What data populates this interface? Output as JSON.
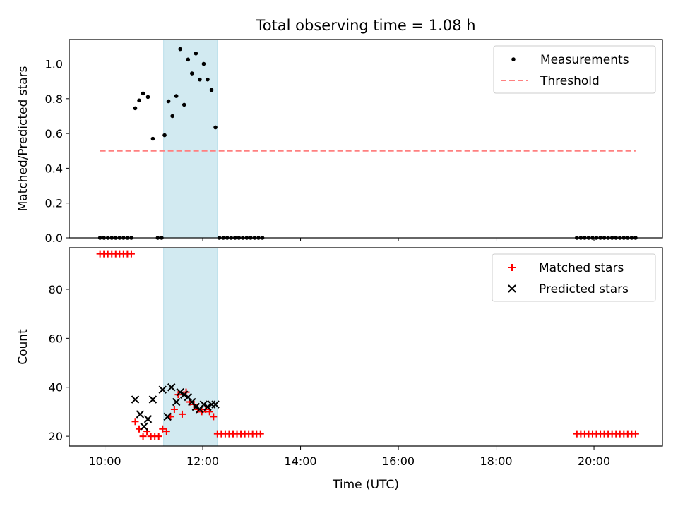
{
  "figure_title": "Total observing time = 1.08 h",
  "colors": {
    "threshold": "#ff8080",
    "highlight": "#add8e6",
    "matched": "#ff0000",
    "predicted": "#000000",
    "measurement": "#000000"
  },
  "chart_data": [
    {
      "type": "scatter",
      "title": "Total observing time = 1.08 h",
      "xlabel": "",
      "ylabel": "Matched/Predicted stars",
      "x_range_hours": [
        9.27,
        21.4
      ],
      "ylim": [
        0,
        1.14
      ],
      "yticks": [
        0.0,
        0.2,
        0.4,
        0.6,
        0.8,
        1.0
      ],
      "ytick_labels": [
        "0.0",
        "0.2",
        "0.4",
        "0.6",
        "0.8",
        "1.0"
      ],
      "legend_position": "top-right",
      "highlight_span_hours": [
        11.2,
        12.3
      ],
      "series": [
        {
          "name": "Measurements",
          "marker": "dot",
          "x_hours": [
            9.9,
            9.98,
            10.06,
            10.14,
            10.22,
            10.3,
            10.38,
            10.46,
            10.54,
            10.62,
            10.7,
            10.78,
            10.88,
            10.98,
            11.08,
            11.16,
            11.22,
            11.3,
            11.38,
            11.46,
            11.54,
            11.62,
            11.7,
            11.78,
            11.86,
            11.94,
            12.02,
            12.1,
            12.18,
            12.26,
            12.34,
            12.42,
            12.5,
            12.58,
            12.66,
            12.74,
            12.82,
            12.9,
            12.98,
            13.06,
            13.14,
            13.22,
            19.65,
            19.73,
            19.81,
            19.89,
            19.97,
            20.05,
            20.13,
            20.21,
            20.29,
            20.37,
            20.45,
            20.53,
            20.61,
            20.69,
            20.77,
            20.85
          ],
          "y": [
            0,
            0,
            0,
            0,
            0,
            0,
            0,
            0,
            0,
            0.745,
            0.79,
            0.83,
            0.81,
            0.57,
            0,
            0,
            0.59,
            0.785,
            0.7,
            0.815,
            1.085,
            0.765,
            1.025,
            0.945,
            1.06,
            0.91,
            1.0,
            0.91,
            0.85,
            0.635,
            0,
            0,
            0,
            0,
            0,
            0,
            0,
            0,
            0,
            0,
            0,
            0,
            0,
            0,
            0,
            0,
            0,
            0,
            0,
            0,
            0,
            0,
            0,
            0,
            0,
            0,
            0,
            0
          ]
        },
        {
          "name": "Threshold",
          "style": "dashed",
          "x_hours": [
            9.9,
            20.85
          ],
          "y": [
            0.5,
            0.5
          ]
        }
      ]
    },
    {
      "type": "scatter",
      "title": "",
      "xlabel": "Time (UTC)",
      "ylabel": "Count",
      "x_range_hours": [
        9.27,
        21.4
      ],
      "xticks_hours": [
        10,
        12,
        14,
        16,
        18,
        20
      ],
      "xtick_labels": [
        "10:00",
        "12:00",
        "14:00",
        "16:00",
        "18:00",
        "20:00"
      ],
      "ylim": [
        16,
        97
      ],
      "yticks": [
        20,
        40,
        60,
        80
      ],
      "ytick_labels": [
        "20",
        "40",
        "60",
        "80"
      ],
      "legend_position": "top-right",
      "highlight_span_hours": [
        11.2,
        12.3
      ],
      "series": [
        {
          "name": "Matched stars",
          "marker": "plus",
          "x_hours": [
            9.9,
            9.98,
            10.06,
            10.14,
            10.22,
            10.3,
            10.38,
            10.46,
            10.54,
            10.62,
            10.7,
            10.78,
            10.86,
            10.94,
            11.02,
            11.1,
            11.18,
            11.26,
            11.34,
            11.42,
            11.5,
            11.58,
            11.66,
            11.74,
            11.82,
            11.9,
            11.98,
            12.06,
            12.14,
            12.22,
            12.3,
            12.38,
            12.46,
            12.54,
            12.62,
            12.7,
            12.78,
            12.86,
            12.94,
            13.02,
            13.1,
            13.18,
            19.65,
            19.73,
            19.81,
            19.89,
            19.97,
            20.05,
            20.13,
            20.21,
            20.29,
            20.37,
            20.45,
            20.53,
            20.61,
            20.69,
            20.77,
            20.85
          ],
          "y": [
            94.5,
            94.5,
            94.5,
            94.5,
            94.5,
            94.5,
            94.5,
            94.5,
            94.5,
            26,
            23,
            20,
            22,
            20,
            20,
            20,
            23,
            22,
            28,
            31,
            37,
            29,
            38,
            34,
            33,
            31,
            30,
            31,
            30,
            28,
            21,
            21,
            21,
            21,
            21,
            21,
            21,
            21,
            21,
            21,
            21,
            21,
            21,
            21,
            21,
            21,
            21,
            21,
            21,
            21,
            21,
            21,
            21,
            21,
            21,
            21,
            21,
            21
          ]
        },
        {
          "name": "Predicted stars",
          "marker": "x",
          "x_hours": [
            10.62,
            10.72,
            10.8,
            10.88,
            10.98,
            11.18,
            11.28,
            11.36,
            11.46,
            11.54,
            11.62,
            11.7,
            11.78,
            11.86,
            11.94,
            12.02,
            12.1,
            12.18,
            12.26
          ],
          "y": [
            35,
            29,
            24,
            27,
            35,
            39,
            28,
            40,
            34,
            38,
            37,
            36,
            34,
            32,
            31,
            33,
            32,
            33,
            33
          ]
        }
      ]
    }
  ]
}
